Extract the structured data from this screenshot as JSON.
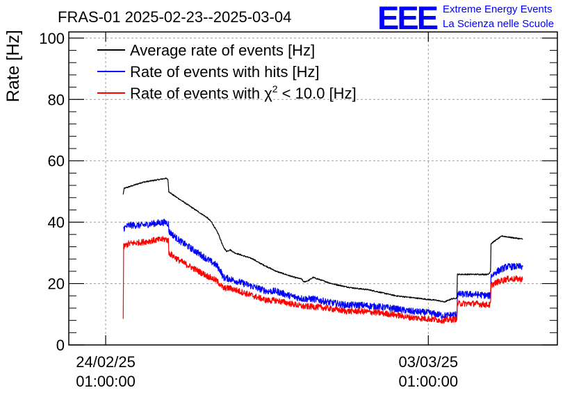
{
  "header": {
    "title": "FRAS-01 2025-02-23--2025-03-04",
    "logo_text": "EEE",
    "logo_line1": "Extreme Energy Events",
    "logo_line2": "La Scienza nelle Scuole"
  },
  "colors": {
    "average": "#000000",
    "hits": "#0000ff",
    "chi2": "#ff0000",
    "logo": "#0000ff",
    "grid": "#9a9a9a"
  },
  "chart_data": {
    "type": "line",
    "title": "FRAS-01 2025-02-23--2025-03-04",
    "xlabel": "",
    "ylabel": "Rate [Hz]",
    "x_unit": "days since 24/02/25 01:00:00",
    "xlim": [
      -0.8,
      9.8
    ],
    "ylim": [
      0,
      102
    ],
    "y_ticks": [
      0,
      20,
      40,
      60,
      80,
      100
    ],
    "x_ticks": [
      {
        "x": 0,
        "date": "24/02/25",
        "time": "01:00:00"
      },
      {
        "x": 7,
        "date": "03/03/25",
        "time": "01:00:00"
      }
    ],
    "grid": true,
    "legend": {
      "placement": "top-left",
      "entries": [
        {
          "series": 0,
          "label_main": "Average rate of events [Hz]"
        },
        {
          "series": 1,
          "label_main": "Rate of events with hits [Hz]"
        },
        {
          "series": 2,
          "label_main": "Rate of events with χ",
          "label_sup": "2",
          "label_tail": " < 10.0 [Hz]"
        }
      ]
    },
    "series": [
      {
        "name": "Average rate of events [Hz]",
        "color": "#000000",
        "noise": 0.4,
        "points": [
          [
            0.38,
            49
          ],
          [
            0.4,
            51
          ],
          [
            0.6,
            52
          ],
          [
            0.8,
            53
          ],
          [
            1.0,
            53.5
          ],
          [
            1.2,
            54
          ],
          [
            1.3,
            54.3
          ],
          [
            1.35,
            54
          ],
          [
            1.37,
            50
          ],
          [
            1.45,
            49
          ],
          [
            1.55,
            48
          ],
          [
            1.7,
            46.5
          ],
          [
            1.85,
            45
          ],
          [
            2.0,
            43.5
          ],
          [
            2.2,
            41.5
          ],
          [
            2.3,
            40
          ],
          [
            2.45,
            36
          ],
          [
            2.55,
            32
          ],
          [
            2.62,
            30.5
          ],
          [
            2.7,
            31
          ],
          [
            2.8,
            30
          ],
          [
            3.0,
            29
          ],
          [
            3.2,
            28
          ],
          [
            3.3,
            27
          ],
          [
            3.5,
            25.5
          ],
          [
            3.7,
            24
          ],
          [
            3.9,
            23
          ],
          [
            4.1,
            22
          ],
          [
            4.25,
            21.5
          ],
          [
            4.3,
            20.5
          ],
          [
            4.4,
            21
          ],
          [
            4.5,
            22
          ],
          [
            4.7,
            21
          ],
          [
            4.9,
            20
          ],
          [
            5.2,
            19
          ],
          [
            5.4,
            18.5
          ],
          [
            5.7,
            18
          ],
          [
            6.0,
            17
          ],
          [
            6.3,
            16
          ],
          [
            6.6,
            15.5
          ],
          [
            6.9,
            15
          ],
          [
            7.2,
            14.5
          ],
          [
            7.35,
            14
          ],
          [
            7.5,
            15
          ],
          [
            7.62,
            15.3
          ],
          [
            7.63,
            23
          ],
          [
            7.9,
            23
          ],
          [
            8.3,
            23
          ],
          [
            8.35,
            24
          ],
          [
            8.36,
            33
          ],
          [
            8.45,
            34
          ],
          [
            8.6,
            35.5
          ],
          [
            8.8,
            35
          ],
          [
            9.05,
            34.5
          ]
        ]
      },
      {
        "name": "Rate of events with hits [Hz]",
        "color": "#0000ff",
        "noise": 2.2,
        "points": [
          [
            0.39,
            38
          ],
          [
            0.5,
            39
          ],
          [
            0.8,
            39
          ],
          [
            1.0,
            39.5
          ],
          [
            1.3,
            40
          ],
          [
            1.36,
            39.5
          ],
          [
            1.37,
            37
          ],
          [
            1.6,
            34
          ],
          [
            1.9,
            31
          ],
          [
            2.2,
            28
          ],
          [
            2.4,
            26
          ],
          [
            2.5,
            24
          ],
          [
            2.55,
            22
          ],
          [
            2.7,
            21.5
          ],
          [
            3.0,
            20
          ],
          [
            3.3,
            18.5
          ],
          [
            3.5,
            17.5
          ],
          [
            3.7,
            17.5
          ],
          [
            4.0,
            16
          ],
          [
            4.3,
            15
          ],
          [
            4.5,
            15
          ],
          [
            4.8,
            14
          ],
          [
            5.2,
            13
          ],
          [
            5.5,
            13
          ],
          [
            5.9,
            12.5
          ],
          [
            6.2,
            12
          ],
          [
            6.6,
            11
          ],
          [
            7.0,
            10.5
          ],
          [
            7.35,
            9.5
          ],
          [
            7.62,
            10
          ],
          [
            7.63,
            16.5
          ],
          [
            8.0,
            16.5
          ],
          [
            8.34,
            16
          ],
          [
            8.35,
            16.5
          ],
          [
            8.36,
            22.5
          ],
          [
            8.5,
            24
          ],
          [
            8.7,
            25.5
          ],
          [
            9.05,
            25.5
          ]
        ]
      },
      {
        "name": "Rate of events with χ2 < 10.0 [Hz]",
        "color": "#ff0000",
        "noise": 2.0,
        "points": [
          [
            0.38,
            8.5
          ],
          [
            0.39,
            32
          ],
          [
            0.5,
            33
          ],
          [
            0.8,
            33.5
          ],
          [
            1.0,
            34
          ],
          [
            1.3,
            34.5
          ],
          [
            1.36,
            34
          ],
          [
            1.37,
            30
          ],
          [
            1.6,
            27.5
          ],
          [
            1.9,
            25
          ],
          [
            2.2,
            22.5
          ],
          [
            2.4,
            21
          ],
          [
            2.5,
            19.5
          ],
          [
            2.55,
            18.5
          ],
          [
            2.7,
            18.5
          ],
          [
            3.0,
            17
          ],
          [
            3.3,
            15.5
          ],
          [
            3.5,
            14.5
          ],
          [
            3.7,
            14.5
          ],
          [
            4.0,
            13.5
          ],
          [
            4.3,
            12.5
          ],
          [
            4.5,
            12.5
          ],
          [
            4.8,
            12
          ],
          [
            5.2,
            11
          ],
          [
            5.5,
            11
          ],
          [
            5.9,
            10.5
          ],
          [
            6.2,
            10
          ],
          [
            6.6,
            9
          ],
          [
            7.0,
            8.5
          ],
          [
            7.35,
            8
          ],
          [
            7.62,
            8.5
          ],
          [
            7.63,
            13.5
          ],
          [
            8.0,
            13.5
          ],
          [
            8.34,
            13
          ],
          [
            8.35,
            13.5
          ],
          [
            8.36,
            19.5
          ],
          [
            8.5,
            20.5
          ],
          [
            8.7,
            21.5
          ],
          [
            9.05,
            21.5
          ]
        ]
      }
    ]
  }
}
